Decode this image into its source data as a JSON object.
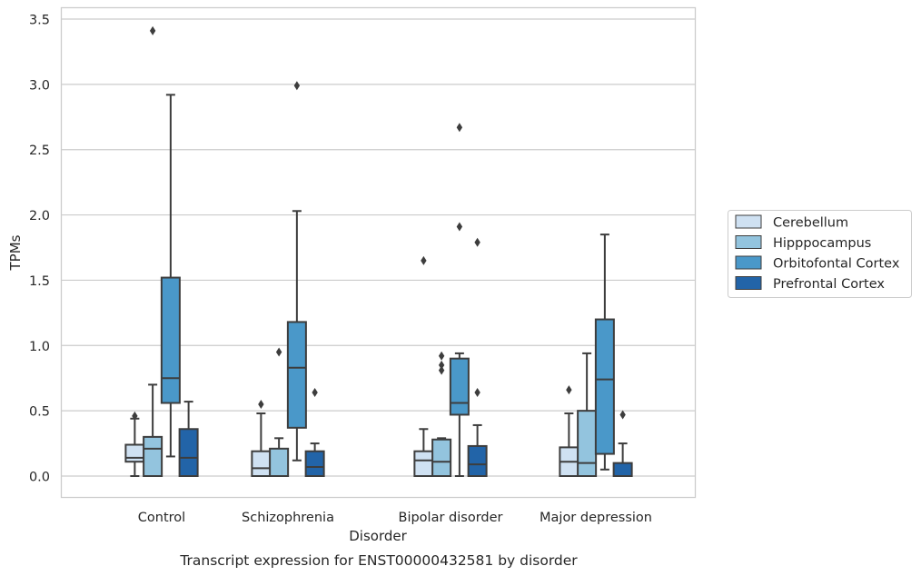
{
  "chart_data": {
    "type": "box",
    "title": "Transcript expression for ENST00000432581 by disorder",
    "xlabel": "Disorder",
    "ylabel": "TPMs",
    "ylim": [
      -0.17,
      3.6
    ],
    "yticks": [
      0.0,
      0.5,
      1.0,
      1.5,
      2.0,
      2.5,
      3.0,
      3.5
    ],
    "ytick_labels": [
      "0.0",
      "0.5",
      "1.0",
      "1.5",
      "2.0",
      "2.5",
      "3.0",
      "3.5"
    ],
    "grid": "horizontal",
    "legend_position": "right",
    "categories": [
      "Control",
      "Schizophrenia",
      "Bipolar disorder",
      "Major depression"
    ],
    "series": [
      {
        "name": "Cerebellum",
        "color": "#cfe1f2",
        "boxes": [
          {
            "whisker_low": 0.0,
            "q1": 0.11,
            "median": 0.14,
            "q3": 0.24,
            "whisker_high": 0.44,
            "outliers": [
              0.46
            ]
          },
          {
            "whisker_low": 0.0,
            "q1": 0.0,
            "median": 0.06,
            "q3": 0.19,
            "whisker_high": 0.48,
            "outliers": [
              0.55
            ]
          },
          {
            "whisker_low": 0.0,
            "q1": 0.0,
            "median": 0.12,
            "q3": 0.19,
            "whisker_high": 0.36,
            "outliers": [
              1.65
            ]
          },
          {
            "whisker_low": 0.0,
            "q1": 0.0,
            "median": 0.11,
            "q3": 0.22,
            "whisker_high": 0.48,
            "outliers": [
              0.66
            ]
          }
        ]
      },
      {
        "name": "Hipppocampus",
        "color": "#93c4de",
        "boxes": [
          {
            "whisker_low": 0.0,
            "q1": 0.0,
            "median": 0.21,
            "q3": 0.3,
            "whisker_high": 0.7,
            "outliers": [
              3.41
            ]
          },
          {
            "whisker_low": 0.0,
            "q1": 0.0,
            "median": 0.0,
            "q3": 0.21,
            "whisker_high": 0.29,
            "outliers": [
              0.95
            ]
          },
          {
            "whisker_low": 0.0,
            "q1": 0.0,
            "median": 0.11,
            "q3": 0.28,
            "whisker_high": 0.29,
            "outliers": [
              0.81,
              0.85,
              0.92
            ]
          },
          {
            "whisker_low": 0.0,
            "q1": 0.0,
            "median": 0.1,
            "q3": 0.5,
            "whisker_high": 0.94,
            "outliers": []
          }
        ]
      },
      {
        "name": "Orbitofontal Cortex",
        "color": "#4a98c9",
        "boxes": [
          {
            "whisker_low": 0.15,
            "q1": 0.56,
            "median": 0.75,
            "q3": 1.52,
            "whisker_high": 2.92,
            "outliers": []
          },
          {
            "whisker_low": 0.12,
            "q1": 0.37,
            "median": 0.83,
            "q3": 1.18,
            "whisker_high": 2.03,
            "outliers": [
              2.99
            ]
          },
          {
            "whisker_low": 0.0,
            "q1": 0.47,
            "median": 0.56,
            "q3": 0.9,
            "whisker_high": 0.94,
            "outliers": [
              1.91,
              2.67
            ]
          },
          {
            "whisker_low": 0.05,
            "q1": 0.17,
            "median": 0.74,
            "q3": 1.2,
            "whisker_high": 1.85,
            "outliers": []
          }
        ]
      },
      {
        "name": "Prefrontal Cortex",
        "color": "#2264a8",
        "boxes": [
          {
            "whisker_low": 0.0,
            "q1": 0.0,
            "median": 0.14,
            "q3": 0.36,
            "whisker_high": 0.57,
            "outliers": []
          },
          {
            "whisker_low": 0.0,
            "q1": 0.0,
            "median": 0.07,
            "q3": 0.19,
            "whisker_high": 0.25,
            "outliers": [
              0.64
            ]
          },
          {
            "whisker_low": 0.0,
            "q1": 0.0,
            "median": 0.09,
            "q3": 0.23,
            "whisker_high": 0.39,
            "outliers": [
              0.64,
              1.79
            ]
          },
          {
            "whisker_low": 0.0,
            "q1": 0.0,
            "median": 0.0,
            "q3": 0.1,
            "whisker_high": 0.25,
            "outliers": [
              0.47
            ]
          }
        ]
      }
    ]
  }
}
